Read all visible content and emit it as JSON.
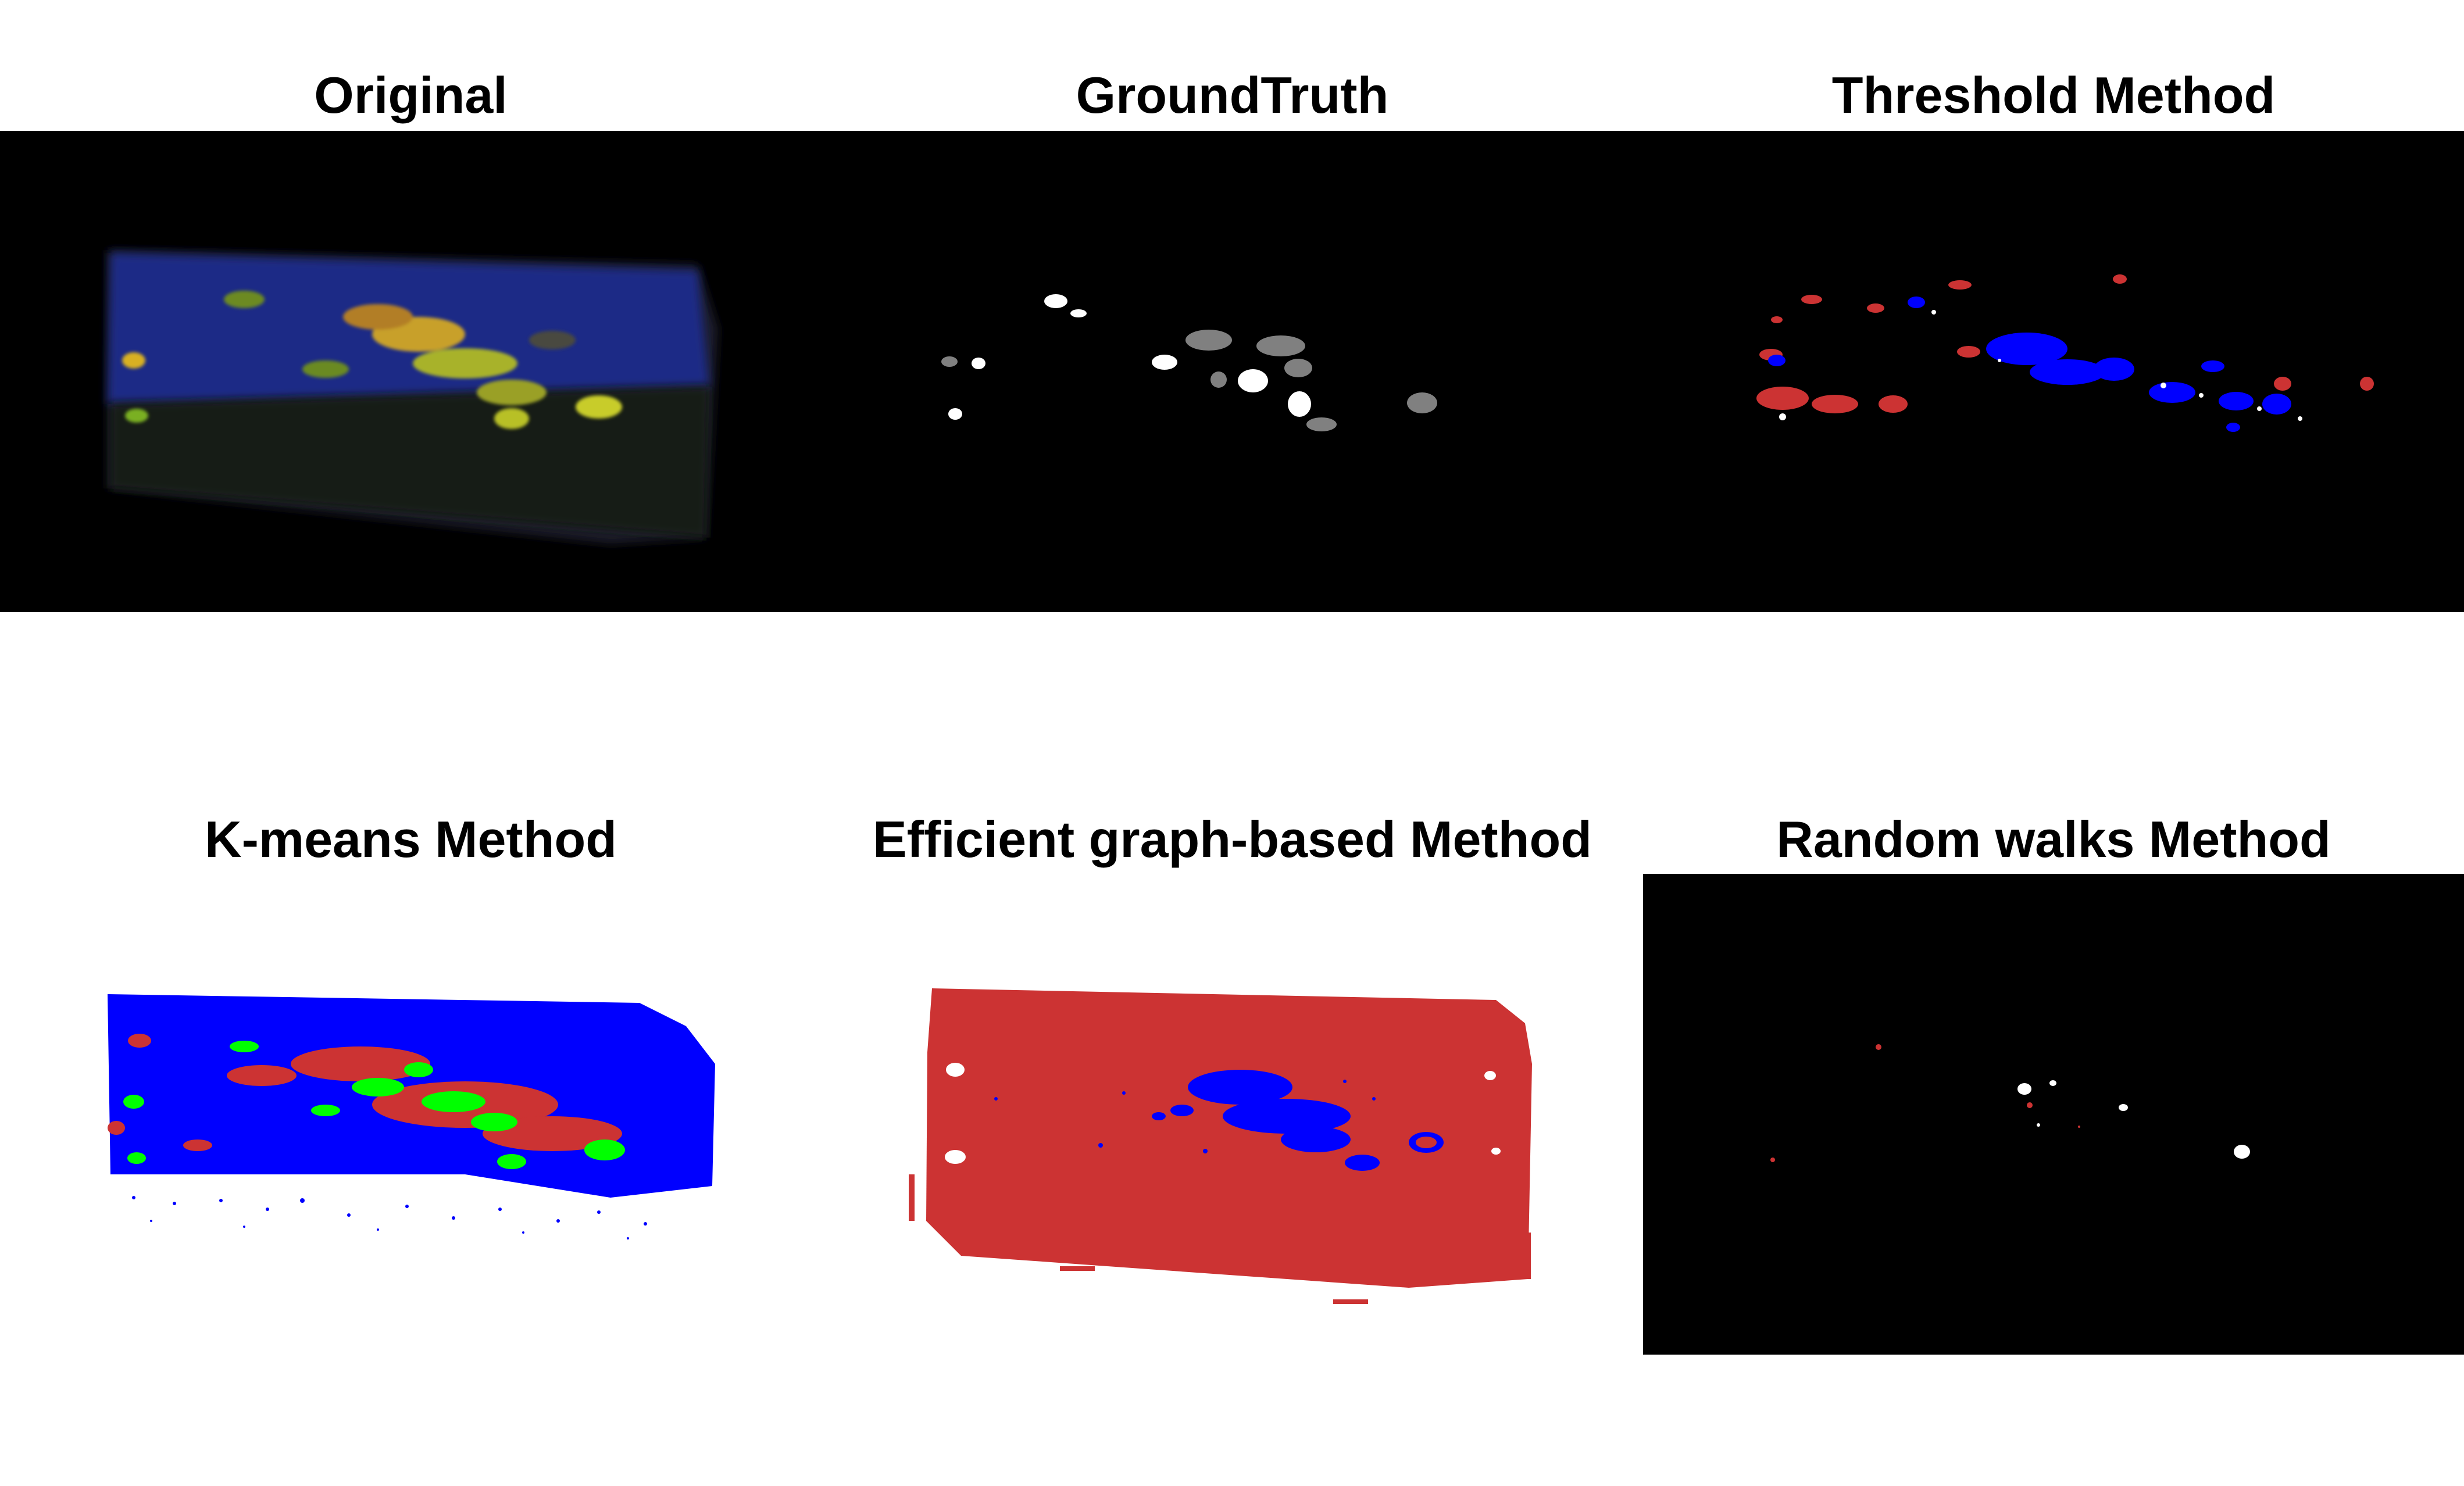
{
  "figure": {
    "panels": [
      {
        "title": "Original"
      },
      {
        "title": "GroundTruth"
      },
      {
        "title": "Threshold Method"
      },
      {
        "title": "K-means Method"
      },
      {
        "title": "Efficient graph-based Method"
      },
      {
        "title": "Random walks Method"
      }
    ]
  },
  "colors": {
    "background": "#ffffff",
    "panel_background": "#000000",
    "segment_red": "#cc3333",
    "segment_blue": "#0000ff",
    "segment_green": "#00ff00",
    "groundtruth_gray": "#808080",
    "groundtruth_white": "#ffffff"
  }
}
